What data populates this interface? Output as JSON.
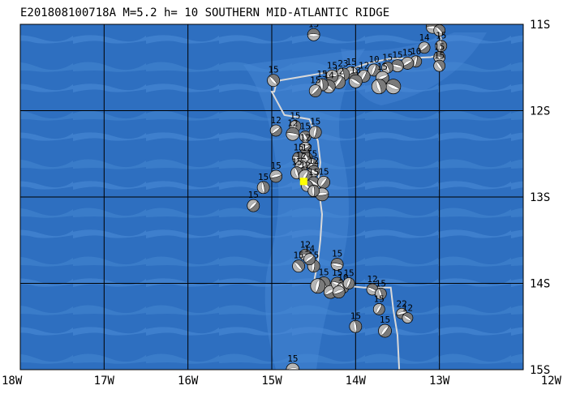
{
  "title": "E201808100718A  M=5.2  h= 10  SOUTHERN MID-ATLANTIC RIDGE",
  "colors": {
    "ocean": "#2e6fc0",
    "ocean_light": "#4a8ad6",
    "ridge": "#d9d9d9",
    "beachball_dark": "#7a7a7a",
    "beachball_light": "#ffffff",
    "epicenter": "#ffff00",
    "grid": "#000000"
  },
  "map": {
    "lon_range": [
      -18,
      -12
    ],
    "lat_range": [
      -15,
      -11
    ],
    "x_ticks": [
      {
        "value": -18,
        "label": "18W"
      },
      {
        "value": -17,
        "label": "17W"
      },
      {
        "value": -16,
        "label": "16W"
      },
      {
        "value": -15,
        "label": "15W"
      },
      {
        "value": -14,
        "label": "14W"
      },
      {
        "value": -13,
        "label": "13W"
      },
      {
        "value": -12,
        "label": "12W"
      }
    ],
    "y_ticks": [
      {
        "value": -11,
        "label": "11S"
      },
      {
        "value": -12,
        "label": "12S"
      },
      {
        "value": -13,
        "label": "13S"
      },
      {
        "value": -14,
        "label": "14S"
      },
      {
        "value": -15,
        "label": "15S"
      }
    ],
    "epicenter": {
      "lon": -14.62,
      "lat": -12.82
    },
    "ridge": [
      [
        -13.02,
        -11.0
      ],
      [
        -12.95,
        -11.3
      ],
      [
        -13.0,
        -11.35
      ],
      [
        -13.1,
        -11.38
      ],
      [
        -13.6,
        -11.4
      ],
      [
        -13.85,
        -11.45
      ],
      [
        -14.0,
        -11.5
      ],
      [
        -14.3,
        -11.55
      ],
      [
        -14.9,
        -11.65
      ],
      [
        -14.95,
        -11.7
      ],
      [
        -14.97,
        -11.78
      ],
      [
        -15.0,
        -11.78
      ],
      [
        -14.85,
        -12.05
      ],
      [
        -14.55,
        -12.1
      ],
      [
        -14.45,
        -12.35
      ],
      [
        -14.42,
        -12.6
      ],
      [
        -14.45,
        -12.85
      ],
      [
        -14.42,
        -13.05
      ],
      [
        -14.4,
        -13.2
      ],
      [
        -14.42,
        -13.5
      ],
      [
        -14.45,
        -13.75
      ],
      [
        -14.5,
        -14.0
      ],
      [
        -14.2,
        -14.02
      ],
      [
        -13.9,
        -14.05
      ],
      [
        -13.58,
        -14.05
      ],
      [
        -13.55,
        -14.3
      ],
      [
        -13.5,
        -14.6
      ],
      [
        -13.48,
        -15.0
      ]
    ],
    "events": [
      {
        "lon": -13.08,
        "lat": -11.03,
        "label": "12",
        "size": 16
      },
      {
        "lon": -13.0,
        "lat": -11.07,
        "label": "15",
        "size": 14
      },
      {
        "lon": -12.98,
        "lat": -11.25,
        "label": "15",
        "size": 14
      },
      {
        "lon": -13.18,
        "lat": -11.27,
        "label": "14",
        "size": 14
      },
      {
        "lon": -13.0,
        "lat": -11.38,
        "label": "15",
        "size": 14
      },
      {
        "lon": -13.0,
        "lat": -11.48,
        "label": "15",
        "size": 14
      },
      {
        "lon": -13.28,
        "lat": -11.43,
        "label": "10",
        "size": 14
      },
      {
        "lon": -13.38,
        "lat": -11.45,
        "label": "15",
        "size": 15
      },
      {
        "lon": -13.5,
        "lat": -11.48,
        "label": "15",
        "size": 15
      },
      {
        "lon": -13.62,
        "lat": -11.5,
        "label": "15",
        "size": 14
      },
      {
        "lon": -13.78,
        "lat": -11.53,
        "label": "10",
        "size": 15
      },
      {
        "lon": -13.68,
        "lat": -11.62,
        "label": "15",
        "size": 16
      },
      {
        "lon": -13.55,
        "lat": -11.72,
        "label": "",
        "size": 18
      },
      {
        "lon": -13.72,
        "lat": -11.72,
        "label": "",
        "size": 18
      },
      {
        "lon": -13.9,
        "lat": -11.6,
        "label": "12",
        "size": 15
      },
      {
        "lon": -14.05,
        "lat": -11.56,
        "label": "15",
        "size": 15
      },
      {
        "lon": -14.0,
        "lat": -11.66,
        "label": "13",
        "size": 16
      },
      {
        "lon": -14.15,
        "lat": -11.58,
        "label": "23",
        "size": 16
      },
      {
        "lon": -14.2,
        "lat": -11.67,
        "label": "12",
        "size": 16
      },
      {
        "lon": -14.28,
        "lat": -11.6,
        "label": "15",
        "size": 15
      },
      {
        "lon": -14.32,
        "lat": -11.72,
        "label": "14",
        "size": 16
      },
      {
        "lon": -14.4,
        "lat": -11.7,
        "label": "15",
        "size": 15
      },
      {
        "lon": -14.48,
        "lat": -11.77,
        "label": "15",
        "size": 15
      },
      {
        "lon": -14.5,
        "lat": -11.12,
        "label": "15",
        "size": 15
      },
      {
        "lon": -14.98,
        "lat": -11.65,
        "label": "15",
        "size": 15
      },
      {
        "lon": -14.72,
        "lat": -12.18,
        "label": "15",
        "size": 14
      },
      {
        "lon": -14.95,
        "lat": -12.23,
        "label": "12",
        "size": 14
      },
      {
        "lon": -14.75,
        "lat": -12.27,
        "label": "12",
        "size": 16
      },
      {
        "lon": -14.6,
        "lat": -12.3,
        "label": "15",
        "size": 14
      },
      {
        "lon": -14.48,
        "lat": -12.25,
        "label": "15",
        "size": 15
      },
      {
        "lon": -14.6,
        "lat": -12.43,
        "label": "12",
        "size": 14
      },
      {
        "lon": -14.68,
        "lat": -12.55,
        "label": "15",
        "size": 15
      },
      {
        "lon": -14.58,
        "lat": -12.55,
        "label": "12",
        "size": 14
      },
      {
        "lon": -14.52,
        "lat": -12.62,
        "label": "15",
        "size": 14
      },
      {
        "lon": -14.65,
        "lat": -12.65,
        "label": "12",
        "size": 15
      },
      {
        "lon": -14.5,
        "lat": -12.7,
        "label": "12",
        "size": 14
      },
      {
        "lon": -14.7,
        "lat": -12.72,
        "label": "15",
        "size": 15
      },
      {
        "lon": -14.6,
        "lat": -12.76,
        "label": "12",
        "size": 16
      },
      {
        "lon": -14.95,
        "lat": -12.76,
        "label": "15",
        "size": 15
      },
      {
        "lon": -14.5,
        "lat": -12.83,
        "label": "15",
        "size": 14
      },
      {
        "lon": -15.1,
        "lat": -12.89,
        "label": "15",
        "size": 15
      },
      {
        "lon": -14.38,
        "lat": -12.83,
        "label": "15",
        "size": 15
      },
      {
        "lon": -14.4,
        "lat": -12.97,
        "label": "",
        "size": 16
      },
      {
        "lon": -14.58,
        "lat": -12.87,
        "label": "",
        "size": 14
      },
      {
        "lon": -14.5,
        "lat": -12.93,
        "label": "",
        "size": 14
      },
      {
        "lon": -15.22,
        "lat": -13.1,
        "label": "15",
        "size": 15
      },
      {
        "lon": -14.6,
        "lat": -13.67,
        "label": "12",
        "size": 14
      },
      {
        "lon": -14.68,
        "lat": -13.8,
        "label": "15",
        "size": 15
      },
      {
        "lon": -14.5,
        "lat": -13.8,
        "label": "15",
        "size": 15
      },
      {
        "lon": -14.55,
        "lat": -13.72,
        "label": "14",
        "size": 14
      },
      {
        "lon": -14.22,
        "lat": -13.78,
        "label": "15",
        "size": 15
      },
      {
        "lon": -14.38,
        "lat": -14.0,
        "label": "15",
        "size": 16
      },
      {
        "lon": -14.45,
        "lat": -14.03,
        "label": "",
        "size": 18
      },
      {
        "lon": -14.3,
        "lat": -14.1,
        "label": "",
        "size": 16
      },
      {
        "lon": -14.22,
        "lat": -14.0,
        "label": "15",
        "size": 15
      },
      {
        "lon": -14.15,
        "lat": -14.05,
        "label": "10",
        "size": 14
      },
      {
        "lon": -14.08,
        "lat": -14.0,
        "label": "15",
        "size": 14
      },
      {
        "lon": -14.2,
        "lat": -14.1,
        "label": "",
        "size": 15
      },
      {
        "lon": -13.8,
        "lat": -14.07,
        "label": "12",
        "size": 14
      },
      {
        "lon": -13.7,
        "lat": -14.12,
        "label": "15",
        "size": 14
      },
      {
        "lon": -13.72,
        "lat": -14.3,
        "label": "15",
        "size": 14
      },
      {
        "lon": -13.45,
        "lat": -14.35,
        "label": "22",
        "size": 13
      },
      {
        "lon": -13.38,
        "lat": -14.4,
        "label": "12",
        "size": 13
      },
      {
        "lon": -14.0,
        "lat": -14.5,
        "label": "15",
        "size": 15
      },
      {
        "lon": -13.65,
        "lat": -14.55,
        "label": "15",
        "size": 16
      },
      {
        "lon": -14.75,
        "lat": -15.0,
        "label": "15",
        "size": 16
      }
    ]
  }
}
